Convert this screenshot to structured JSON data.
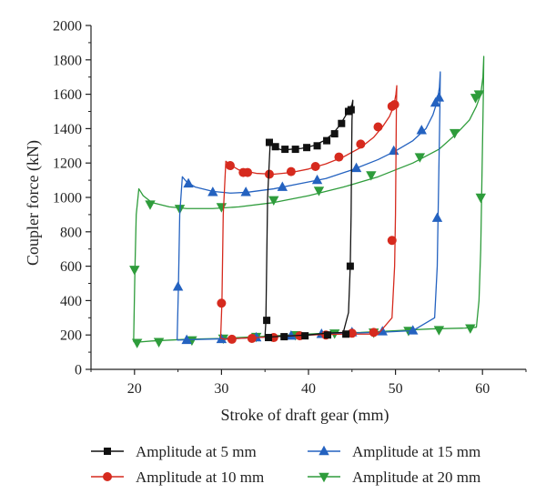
{
  "chart_data": {
    "type": "line",
    "title": "",
    "xlabel": "Stroke of draft gear (mm)",
    "ylabel": "Coupler force (kN)",
    "xlim": [
      15,
      65
    ],
    "ylim": [
      0,
      2000
    ],
    "xticks": [
      20,
      30,
      40,
      50,
      60
    ],
    "yticks": [
      0,
      200,
      400,
      600,
      800,
      1000,
      1200,
      1400,
      1600,
      1800,
      2000
    ],
    "grid": false,
    "legend_position": "bottom",
    "series": [
      {
        "name": "Amplitude at 5 mm",
        "color": "#111111",
        "marker": "square",
        "x": [
          35.0,
          35.1,
          35.3,
          35.6,
          36.1,
          37.0,
          38.0,
          39.2,
          40.5,
          41.8,
          42.8,
          43.6,
          44.2,
          44.7,
          45.0,
          45.1,
          45.0,
          44.95,
          44.9,
          44.8,
          44.6,
          44.0,
          42.0,
          40.0,
          38.0,
          36.0,
          35.2,
          35.0
        ],
        "y": [
          190,
          280,
          1000,
          1320,
          1290,
          1275,
          1280,
          1285,
          1300,
          1330,
          1370,
          1420,
          1470,
          1510,
          1540,
          1565,
          1450,
          1200,
          900,
          600,
          330,
          215,
          210,
          200,
          195,
          190,
          185,
          190
        ],
        "marker_x": [
          35.2,
          35.5,
          36.2,
          37.3,
          38.5,
          39.8,
          41.0,
          42.1,
          43.0,
          43.8,
          44.6,
          44.9,
          44.8,
          44.3,
          42.2,
          39.6,
          37.2,
          35.4
        ],
        "marker_y": [
          285,
          1320,
          1295,
          1280,
          1280,
          1290,
          1300,
          1330,
          1370,
          1430,
          1500,
          1510,
          600,
          205,
          200,
          195,
          190,
          185
        ]
      },
      {
        "name": "Amplitude at 10 mm",
        "color": "#d62a1e",
        "marker": "circle",
        "x": [
          29.9,
          30.05,
          30.2,
          30.5,
          31.0,
          32.0,
          34.0,
          36.0,
          38.0,
          40.0,
          42.0,
          44.0,
          46.0,
          47.5,
          48.5,
          49.3,
          49.8,
          50.05,
          50.15,
          50.1,
          50.05,
          50.0,
          49.9,
          49.6,
          48.0,
          44.0,
          40.0,
          36.0,
          32.0,
          30.5,
          29.9
        ],
        "y": [
          180,
          390,
          900,
          1210,
          1190,
          1160,
          1140,
          1135,
          1145,
          1165,
          1195,
          1235,
          1290,
          1350,
          1410,
          1470,
          1530,
          1600,
          1650,
          1500,
          1200,
          900,
          600,
          300,
          205,
          205,
          200,
          190,
          180,
          175,
          180
        ],
        "marker_x": [
          30.0,
          31.0,
          32.5,
          33.0,
          35.5,
          38.0,
          40.8,
          43.5,
          46.0,
          48.0,
          49.6,
          49.9,
          49.6,
          47.5,
          45.0,
          42.0,
          39.0,
          36.0,
          33.5,
          31.2
        ],
        "marker_y": [
          385,
          1185,
          1145,
          1145,
          1135,
          1150,
          1180,
          1235,
          1310,
          1410,
          1530,
          1540,
          750,
          215,
          210,
          200,
          195,
          185,
          180,
          175
        ]
      },
      {
        "name": "Amplitude at 15 mm",
        "color": "#2462c0",
        "marker": "triangle-up",
        "x": [
          24.9,
          25.05,
          25.2,
          25.5,
          26.0,
          27.0,
          29.0,
          31.0,
          33.0,
          36.0,
          39.0,
          42.0,
          45.0,
          48.0,
          50.0,
          52.0,
          53.5,
          54.3,
          54.8,
          55.05,
          55.15,
          55.1,
          55.0,
          54.9,
          54.8,
          54.5,
          52.0,
          48.0,
          44.0,
          40.0,
          36.0,
          32.0,
          28.0,
          26.0,
          24.9
        ],
        "y": [
          170,
          480,
          900,
          1120,
          1090,
          1060,
          1035,
          1025,
          1030,
          1050,
          1080,
          1110,
          1160,
          1220,
          1270,
          1330,
          1400,
          1480,
          1560,
          1640,
          1730,
          1500,
          1200,
          900,
          600,
          300,
          225,
          215,
          210,
          200,
          190,
          180,
          175,
          172,
          170
        ],
        "marker_x": [
          25.0,
          26.2,
          29.0,
          32.8,
          37.0,
          41.0,
          45.5,
          49.8,
          53.0,
          54.6,
          55.0,
          54.8,
          52.0,
          48.5,
          45.0,
          41.5,
          38.0,
          34.0,
          30.0,
          26.0
        ],
        "marker_y": [
          480,
          1080,
          1030,
          1030,
          1060,
          1100,
          1170,
          1270,
          1390,
          1550,
          1580,
          880,
          225,
          220,
          215,
          205,
          195,
          185,
          175,
          170
        ]
      },
      {
        "name": "Amplitude at 20 mm",
        "color": "#2e9c3b",
        "marker": "triangle-down",
        "x": [
          19.9,
          20.05,
          20.2,
          20.5,
          21.0,
          22.0,
          24.0,
          26.0,
          29.0,
          32.0,
          36.0,
          40.0,
          44.0,
          48.0,
          52.0,
          55.0,
          57.0,
          58.5,
          59.3,
          59.8,
          60.05,
          60.15,
          60.1,
          60.0,
          59.9,
          59.8,
          59.6,
          59.3,
          58.0,
          54.0,
          50.0,
          46.0,
          42.0,
          38.0,
          34.0,
          30.0,
          26.0,
          22.0,
          20.3,
          19.9
        ],
        "y": [
          160,
          580,
          900,
          1050,
          1010,
          970,
          945,
          935,
          935,
          945,
          970,
          1010,
          1060,
          1120,
          1200,
          1280,
          1370,
          1450,
          1530,
          1600,
          1700,
          1820,
          1600,
          1300,
          1000,
          700,
          400,
          245,
          240,
          235,
          225,
          215,
          210,
          200,
          190,
          180,
          175,
          165,
          158,
          160
        ],
        "marker_x": [
          20.0,
          21.8,
          25.2,
          30.0,
          36.0,
          41.2,
          47.2,
          52.8,
          56.8,
          59.2,
          59.6,
          59.8,
          58.6,
          55.0,
          51.5,
          47.5,
          43.0,
          38.5,
          34.0,
          30.2,
          26.6,
          22.8,
          20.3
        ],
        "marker_y": [
          580,
          960,
          935,
          945,
          985,
          1040,
          1130,
          1235,
          1375,
          1580,
          1600,
          1000,
          240,
          230,
          225,
          215,
          210,
          200,
          190,
          180,
          170,
          160,
          155
        ]
      }
    ]
  },
  "legend": {
    "items": [
      {
        "label": "Amplitude at 5 mm"
      },
      {
        "label": "Amplitude at 10 mm"
      },
      {
        "label": "Amplitude at 15 mm"
      },
      {
        "label": "Amplitude at 20 mm"
      }
    ]
  }
}
